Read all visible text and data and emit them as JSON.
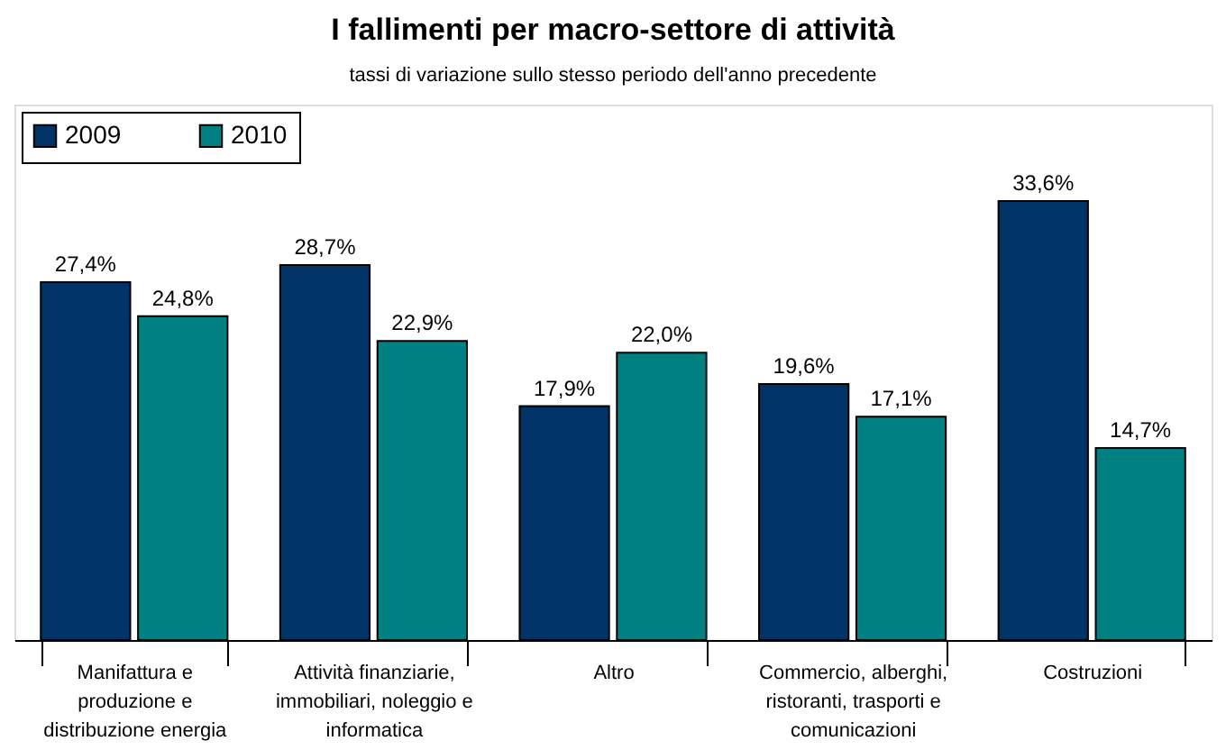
{
  "chart_data": {
    "type": "bar",
    "title": "I fallimenti per macro-settore di attività",
    "subtitle": "tassi di variazione sullo stesso periodo dell'anno precedente",
    "categories": [
      "Manifattura e produzione e distribuzione energia",
      "Attività finanziarie, immobiliari, noleggio e informatica",
      "Altro",
      "Commercio, alberghi, ristoranti, trasporti e comunicazioni",
      "Costruzioni"
    ],
    "series": [
      {
        "name": "2009",
        "color": "#003366",
        "values": [
          27.4,
          28.7,
          17.9,
          19.6,
          33.6
        ],
        "value_labels": [
          "27,4%",
          "28,7%",
          "17,9%",
          "19,6%",
          "33,6%"
        ]
      },
      {
        "name": "2010",
        "color": "#008080",
        "values": [
          24.8,
          22.9,
          22.0,
          17.1,
          14.7
        ],
        "value_labels": [
          "24,8%",
          "22,9%",
          "22,0%",
          "17,1%",
          "14,7%"
        ]
      }
    ],
    "legend": "top left",
    "grid": false
  }
}
